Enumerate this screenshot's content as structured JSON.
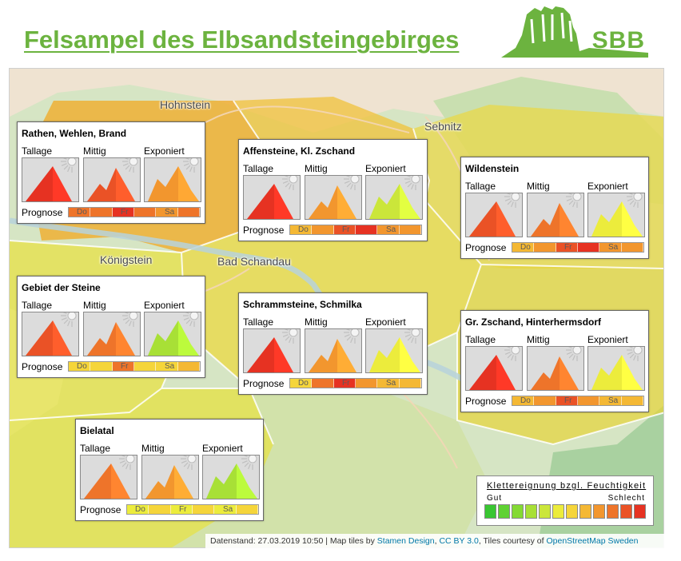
{
  "header": {
    "title": "Felsampel des Elbsandsteingebirges",
    "logo_text": "SBB"
  },
  "colors": {
    "brand_green": "#6cb33f",
    "scale": [
      "#39c632",
      "#5fd233",
      "#84da34",
      "#a8e036",
      "#cbe63a",
      "#ecec3c",
      "#f5d53a",
      "#f4b834",
      "#f2962e",
      "#ee742a",
      "#ea5226",
      "#e63222"
    ]
  },
  "places": {
    "hohnstein": "Hohnstein",
    "sebnitz": "Sebnitz",
    "koenigstein": "Königstein",
    "bad_schandau": "Bad Schandau"
  },
  "labels": {
    "tallage": "Tallage",
    "mittig": "Mittig",
    "exponiert": "Exponiert",
    "prognose": "Prognose",
    "days": [
      "Do",
      "Fr",
      "Sa"
    ]
  },
  "areas": [
    {
      "id": "rathen",
      "name": "Rathen, Wehlen, Brand",
      "levels": [
        11,
        10,
        8
      ],
      "forecast": [
        9,
        9,
        11,
        9,
        8,
        9
      ]
    },
    {
      "id": "affensteine",
      "name": "Affensteine, Kl. Zschand",
      "levels": [
        11,
        8,
        4
      ],
      "forecast": [
        7,
        8,
        10,
        11,
        8,
        8
      ]
    },
    {
      "id": "wildenstein",
      "name": "Wildenstein",
      "levels": [
        10,
        9,
        5
      ],
      "forecast": [
        7,
        8,
        10,
        11,
        8,
        8
      ]
    },
    {
      "id": "gebiet",
      "name": "Gebiet der Steine",
      "levels": [
        10,
        9,
        3
      ],
      "forecast": [
        6,
        6,
        9,
        6,
        6,
        7
      ]
    },
    {
      "id": "schrammsteine",
      "name": "Schrammsteine, Schmilka",
      "levels": [
        11,
        8,
        5
      ],
      "forecast": [
        6,
        9,
        11,
        8,
        7,
        7
      ]
    },
    {
      "id": "zschand",
      "name": "Gr. Zschand, Hinterhermsdorf",
      "levels": [
        11,
        9,
        5
      ],
      "forecast": [
        7,
        8,
        10,
        8,
        7,
        7
      ]
    },
    {
      "id": "bielatal",
      "name": "Bielatal",
      "levels": [
        9,
        8,
        3
      ],
      "forecast": [
        5,
        6,
        5,
        6,
        5,
        6
      ]
    }
  ],
  "legend": {
    "title": "Klettereignung bzgl. Feuchtigkeit",
    "low": "Gut",
    "high": "Schlecht"
  },
  "attribution": {
    "datenstand": "Datenstand: 27.03.2019 10:50 | Map tiles by ",
    "stamen": "Stamen Design",
    "sep1": ", ",
    "license": "CC BY 3.0",
    "sep2": ", Tiles courtesy of ",
    "osm": "OpenStreetMap Sweden"
  }
}
